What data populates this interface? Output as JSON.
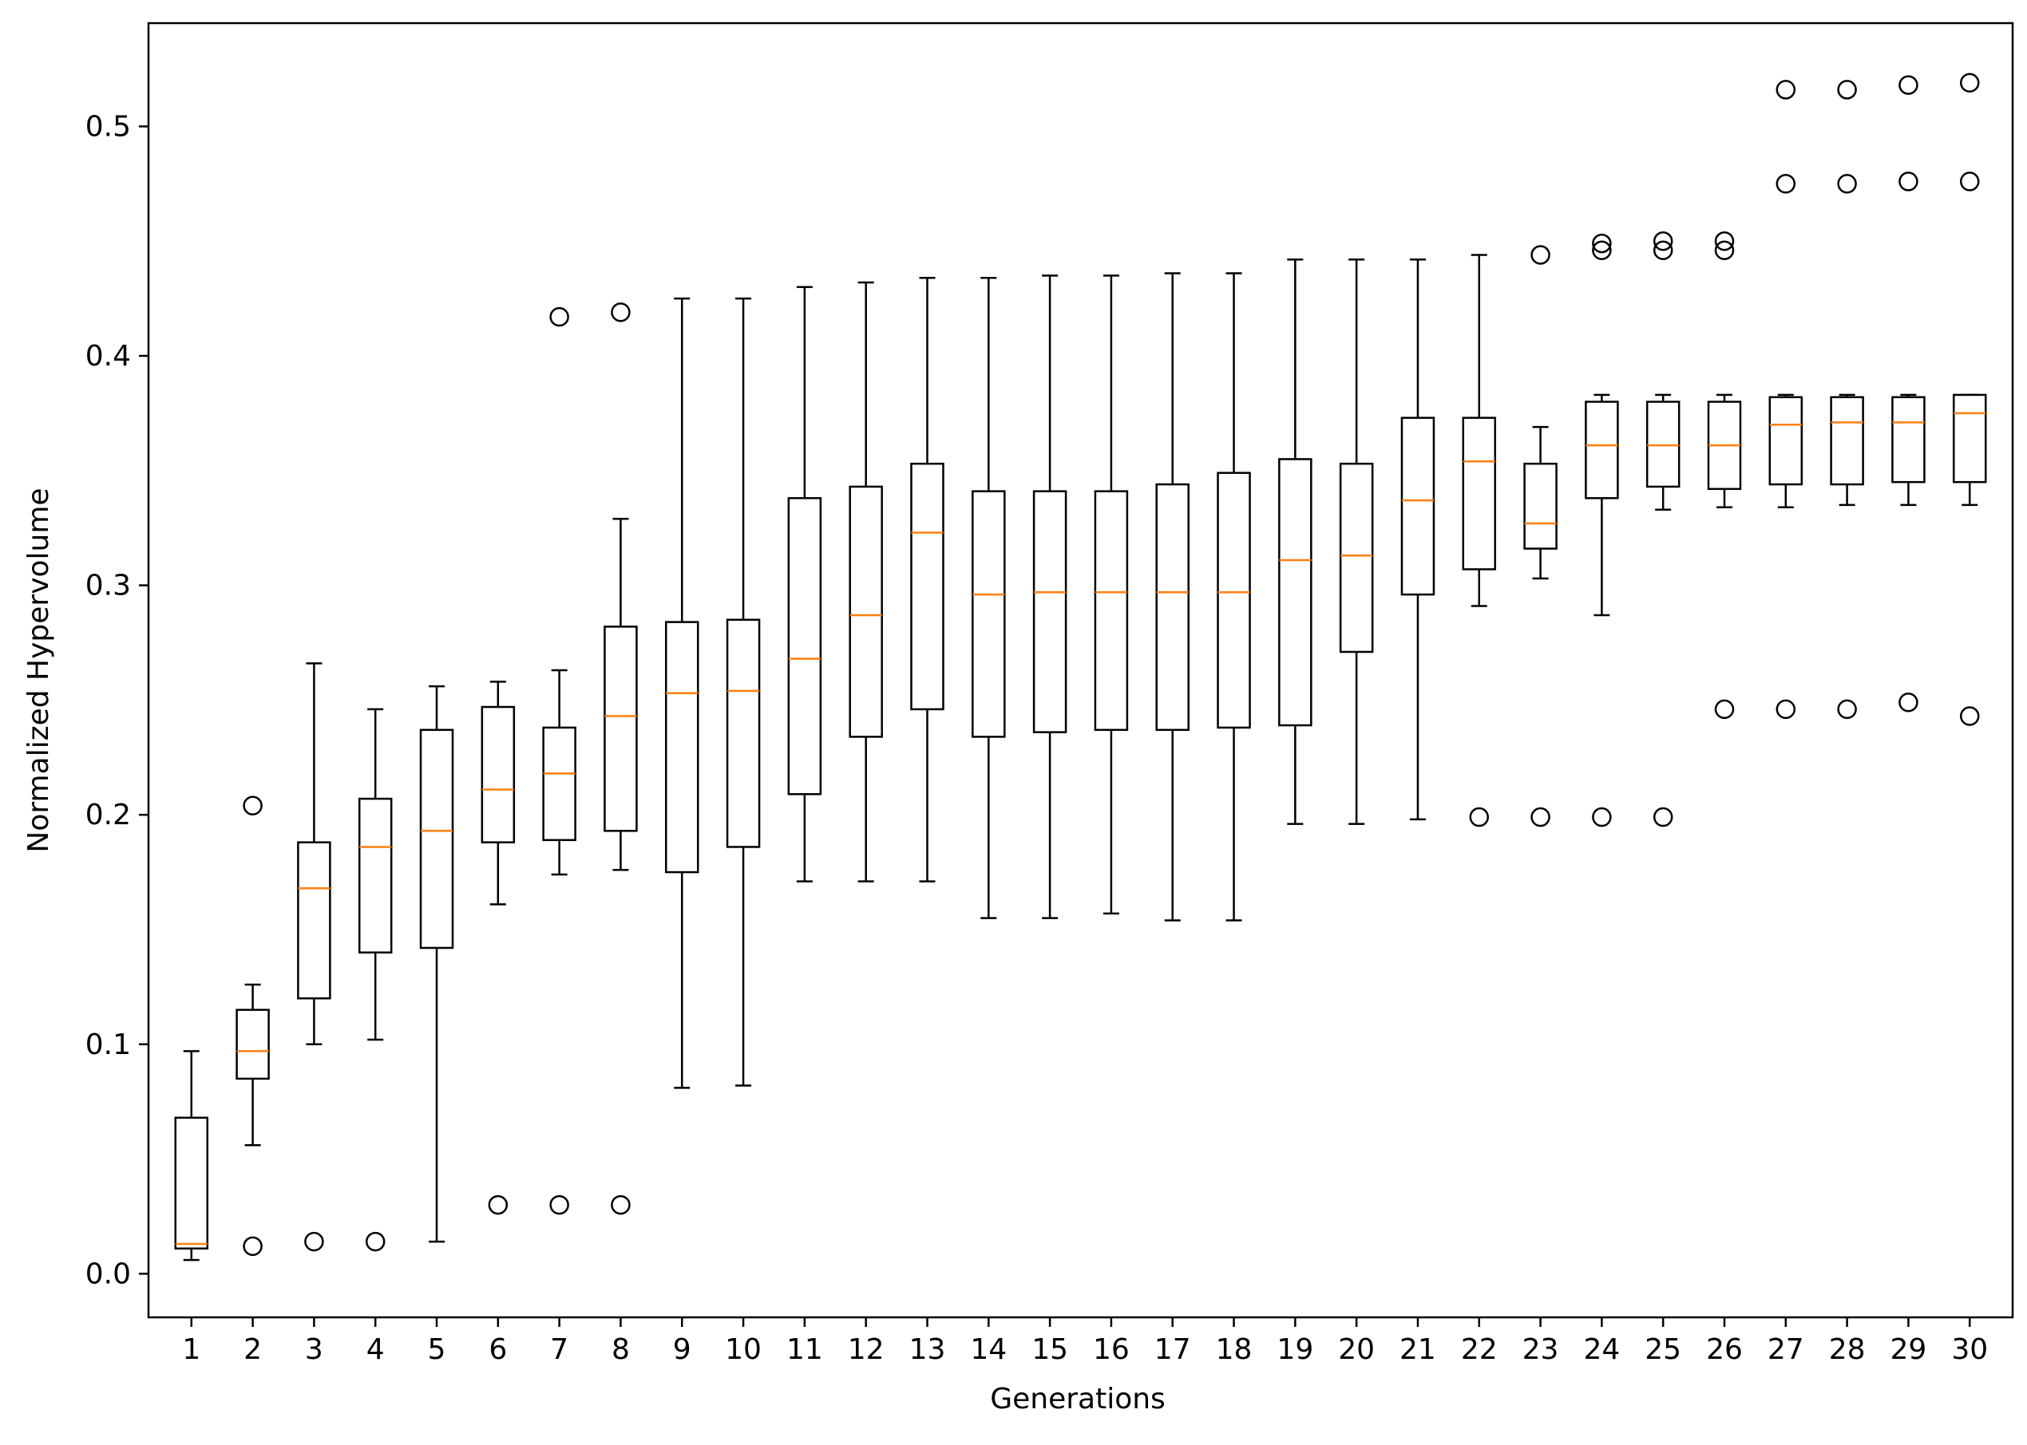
{
  "chart_data": {
    "type": "box",
    "xlabel": "Generations",
    "ylabel": "Normalized Hypervolume",
    "ylim": [
      -0.019,
      0.545
    ],
    "yticks": [
      0.0,
      0.1,
      0.2,
      0.3,
      0.4,
      0.5
    ],
    "ytick_labels": [
      "0.0",
      "0.1",
      "0.2",
      "0.3",
      "0.4",
      "0.5"
    ],
    "grid": false,
    "legend": "none",
    "colors": {
      "box": "#000000",
      "median": "#ff7f0e",
      "whisker": "#000000",
      "flier": "#000000"
    },
    "categories": [
      "1",
      "2",
      "3",
      "4",
      "5",
      "6",
      "7",
      "8",
      "9",
      "10",
      "11",
      "12",
      "13",
      "14",
      "15",
      "16",
      "17",
      "18",
      "19",
      "20",
      "21",
      "22",
      "23",
      "24",
      "25",
      "26",
      "27",
      "28",
      "29",
      "30"
    ],
    "boxes": [
      {
        "whislo": 0.006,
        "q1": 0.011,
        "med": 0.013,
        "q3": 0.068,
        "whishi": 0.097,
        "fliers": []
      },
      {
        "whislo": 0.056,
        "q1": 0.085,
        "med": 0.097,
        "q3": 0.115,
        "whishi": 0.126,
        "fliers": [
          0.204,
          0.012
        ]
      },
      {
        "whislo": 0.1,
        "q1": 0.12,
        "med": 0.168,
        "q3": 0.188,
        "whishi": 0.266,
        "fliers": [
          0.014
        ]
      },
      {
        "whislo": 0.102,
        "q1": 0.14,
        "med": 0.186,
        "q3": 0.207,
        "whishi": 0.246,
        "fliers": [
          0.014
        ]
      },
      {
        "whislo": 0.014,
        "q1": 0.142,
        "med": 0.193,
        "q3": 0.237,
        "whishi": 0.256,
        "fliers": []
      },
      {
        "whislo": 0.161,
        "q1": 0.188,
        "med": 0.211,
        "q3": 0.247,
        "whishi": 0.258,
        "fliers": [
          0.03
        ]
      },
      {
        "whislo": 0.174,
        "q1": 0.189,
        "med": 0.218,
        "q3": 0.238,
        "whishi": 0.263,
        "fliers": [
          0.417,
          0.03
        ]
      },
      {
        "whislo": 0.176,
        "q1": 0.193,
        "med": 0.243,
        "q3": 0.282,
        "whishi": 0.329,
        "fliers": [
          0.419,
          0.03
        ]
      },
      {
        "whislo": 0.081,
        "q1": 0.175,
        "med": 0.253,
        "q3": 0.284,
        "whishi": 0.425,
        "fliers": []
      },
      {
        "whislo": 0.082,
        "q1": 0.186,
        "med": 0.254,
        "q3": 0.285,
        "whishi": 0.425,
        "fliers": []
      },
      {
        "whislo": 0.171,
        "q1": 0.209,
        "med": 0.268,
        "q3": 0.338,
        "whishi": 0.43,
        "fliers": []
      },
      {
        "whislo": 0.171,
        "q1": 0.234,
        "med": 0.287,
        "q3": 0.343,
        "whishi": 0.432,
        "fliers": []
      },
      {
        "whislo": 0.171,
        "q1": 0.246,
        "med": 0.323,
        "q3": 0.353,
        "whishi": 0.434,
        "fliers": []
      },
      {
        "whislo": 0.155,
        "q1": 0.234,
        "med": 0.296,
        "q3": 0.341,
        "whishi": 0.434,
        "fliers": []
      },
      {
        "whislo": 0.155,
        "q1": 0.236,
        "med": 0.297,
        "q3": 0.341,
        "whishi": 0.435,
        "fliers": []
      },
      {
        "whislo": 0.157,
        "q1": 0.237,
        "med": 0.297,
        "q3": 0.341,
        "whishi": 0.435,
        "fliers": []
      },
      {
        "whislo": 0.154,
        "q1": 0.237,
        "med": 0.297,
        "q3": 0.344,
        "whishi": 0.436,
        "fliers": []
      },
      {
        "whislo": 0.154,
        "q1": 0.238,
        "med": 0.297,
        "q3": 0.349,
        "whishi": 0.436,
        "fliers": []
      },
      {
        "whislo": 0.196,
        "q1": 0.239,
        "med": 0.311,
        "q3": 0.355,
        "whishi": 0.442,
        "fliers": []
      },
      {
        "whislo": 0.196,
        "q1": 0.271,
        "med": 0.313,
        "q3": 0.353,
        "whishi": 0.442,
        "fliers": []
      },
      {
        "whislo": 0.198,
        "q1": 0.296,
        "med": 0.337,
        "q3": 0.373,
        "whishi": 0.442,
        "fliers": []
      },
      {
        "whislo": 0.291,
        "q1": 0.307,
        "med": 0.354,
        "q3": 0.373,
        "whishi": 0.444,
        "fliers": [
          0.199
        ]
      },
      {
        "whislo": 0.303,
        "q1": 0.316,
        "med": 0.327,
        "q3": 0.353,
        "whishi": 0.369,
        "fliers": [
          0.444,
          0.199
        ]
      },
      {
        "whislo": 0.287,
        "q1": 0.338,
        "med": 0.361,
        "q3": 0.38,
        "whishi": 0.383,
        "fliers": [
          0.449,
          0.446,
          0.199
        ]
      },
      {
        "whislo": 0.333,
        "q1": 0.343,
        "med": 0.361,
        "q3": 0.38,
        "whishi": 0.383,
        "fliers": [
          0.45,
          0.446,
          0.199
        ]
      },
      {
        "whislo": 0.334,
        "q1": 0.342,
        "med": 0.361,
        "q3": 0.38,
        "whishi": 0.383,
        "fliers": [
          0.45,
          0.446,
          0.246
        ]
      },
      {
        "whislo": 0.334,
        "q1": 0.344,
        "med": 0.37,
        "q3": 0.382,
        "whishi": 0.383,
        "fliers": [
          0.516,
          0.475,
          0.246
        ]
      },
      {
        "whislo": 0.335,
        "q1": 0.344,
        "med": 0.371,
        "q3": 0.382,
        "whishi": 0.383,
        "fliers": [
          0.516,
          0.475,
          0.246
        ]
      },
      {
        "whislo": 0.335,
        "q1": 0.345,
        "med": 0.371,
        "q3": 0.382,
        "whishi": 0.383,
        "fliers": [
          0.518,
          0.476,
          0.249
        ]
      },
      {
        "whislo": 0.335,
        "q1": 0.345,
        "med": 0.375,
        "q3": 0.383,
        "whishi": 0.383,
        "fliers": [
          0.519,
          0.476,
          0.243
        ]
      }
    ]
  }
}
